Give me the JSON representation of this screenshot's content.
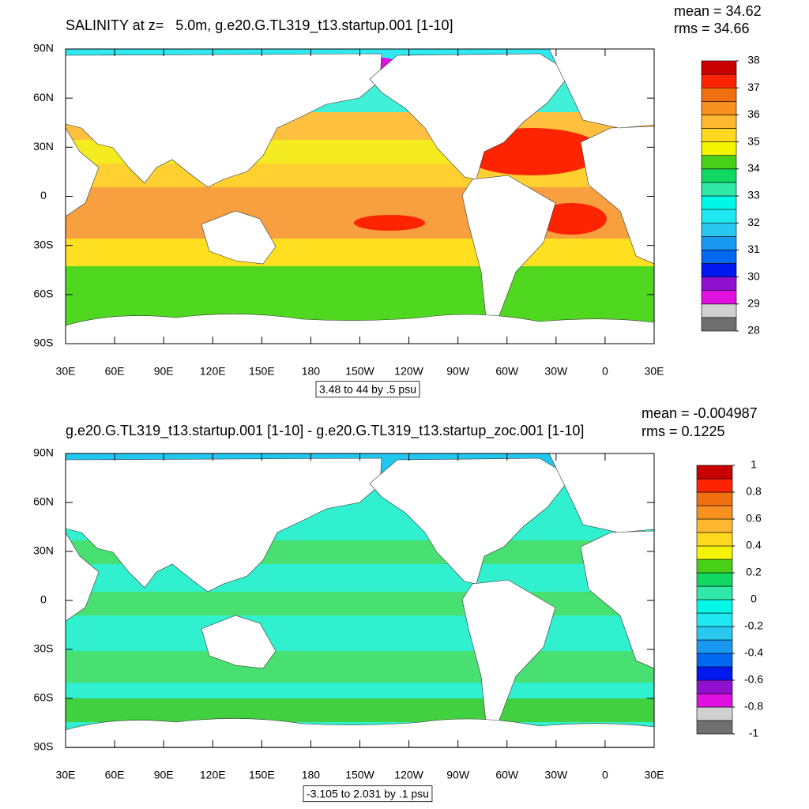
{
  "chart_data": [
    {
      "type": "contour_map",
      "title": "SALINITY at z=   5.0m, g.e20.G.TL319_t13.startup.001 [1-10]",
      "stats": [
        "mean = 34.62",
        "rms = 34.66"
      ],
      "info": "3.48 to 44 by .5 psu",
      "xlim": [
        30,
        390
      ],
      "xticks": [
        {
          "value": 30,
          "label": "30E"
        },
        {
          "value": 60,
          "label": "60E"
        },
        {
          "value": 90,
          "label": "90E"
        },
        {
          "value": 120,
          "label": "120E"
        },
        {
          "value": 150,
          "label": "150E"
        },
        180,
        {
          "value": 210,
          "label": "150W"
        },
        {
          "value": 240,
          "label": "120W"
        },
        {
          "value": 270,
          "label": "90W"
        },
        {
          "value": 300,
          "label": "60W"
        },
        {
          "value": 330,
          "label": "30W"
        },
        {
          "value": 360,
          "label": "0"
        },
        {
          "value": 390,
          "label": "30E"
        }
      ],
      "ylim": [
        -90,
        90
      ],
      "yticks": [
        {
          "value": 90,
          "label": "90N"
        },
        {
          "value": 60,
          "label": "60N"
        },
        {
          "value": 30,
          "label": "30N"
        },
        0,
        {
          "value": -30,
          "label": "30S"
        },
        {
          "value": -60,
          "label": "60S"
        },
        {
          "value": -90,
          "label": "90S"
        }
      ],
      "colorbar": {
        "levels": [
          28,
          29,
          30,
          31,
          32,
          33,
          34,
          35,
          36,
          37,
          38
        ],
        "colors": [
          "#707070",
          "#d0d0d0",
          "#e010e0",
          "#9010d0",
          "#0018f0",
          "#0068f0",
          "#1898f0",
          "#28c8f0",
          "#20e8f0",
          "#00f8e8",
          "#30e8a8",
          "#10d860",
          "#48d018",
          "#f4f400",
          "#ffd820",
          "#ffb830",
          "#f89020",
          "#f07010",
          "#ff2400",
          "#c80000"
        ]
      }
    },
    {
      "type": "contour_map",
      "title": "g.e20.G.TL319_t13.startup.001 [1-10] - g.e20.G.TL319_t13.startup_zoc.001 [1-10]",
      "stats": [
        "mean = -0.004987",
        "rms = 0.1225"
      ],
      "info": "-3.105 to 2.031 by .1 psu",
      "xlim": [
        30,
        390
      ],
      "xticks": [
        {
          "value": 30,
          "label": "30E"
        },
        {
          "value": 60,
          "label": "60E"
        },
        {
          "value": 90,
          "label": "90E"
        },
        {
          "value": 120,
          "label": "120E"
        },
        {
          "value": 150,
          "label": "150E"
        },
        180,
        {
          "value": 210,
          "label": "150W"
        },
        {
          "value": 240,
          "label": "120W"
        },
        {
          "value": 270,
          "label": "90W"
        },
        {
          "value": 300,
          "label": "60W"
        },
        {
          "value": 330,
          "label": "30W"
        },
        {
          "value": 360,
          "label": "0"
        },
        {
          "value": 390,
          "label": "30E"
        }
      ],
      "ylim": [
        -90,
        90
      ],
      "yticks": [
        {
          "value": 90,
          "label": "90N"
        },
        {
          "value": 60,
          "label": "60N"
        },
        {
          "value": 30,
          "label": "30N"
        },
        0,
        {
          "value": -30,
          "label": "30S"
        },
        {
          "value": -60,
          "label": "60S"
        },
        {
          "value": -90,
          "label": "90S"
        }
      ],
      "colorbar": {
        "levels": [
          -1,
          -0.8,
          -0.6,
          -0.4,
          -0.2,
          0,
          0.2,
          0.4,
          0.6,
          0.8,
          1
        ],
        "colors": [
          "#707070",
          "#d0d0d0",
          "#e010e0",
          "#9010d0",
          "#0018f0",
          "#0068f0",
          "#1898f0",
          "#28c8f0",
          "#20e8f0",
          "#00f8e8",
          "#30e8a8",
          "#10d860",
          "#48d018",
          "#f4f400",
          "#ffd820",
          "#ffb830",
          "#f89020",
          "#f07010",
          "#ff2400",
          "#c80000"
        ]
      }
    }
  ]
}
